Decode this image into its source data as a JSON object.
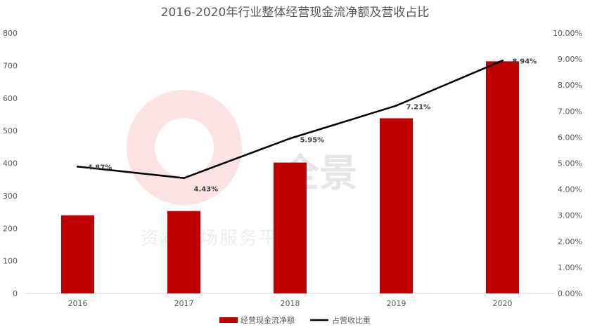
{
  "chart_data": {
    "type": "bar+line",
    "title": "2016-2020年行业整体经营现金流净额及营收占比",
    "categories": [
      "2016",
      "2017",
      "2018",
      "2019",
      "2020"
    ],
    "series": [
      {
        "name": "经营现金流净额",
        "type": "bar",
        "axis": "left",
        "color": "#c00000",
        "values": [
          240,
          253,
          402,
          538,
          713
        ]
      },
      {
        "name": "占营收比重",
        "type": "line",
        "axis": "right",
        "color": "#000000",
        "values": [
          4.87,
          4.43,
          5.95,
          7.21,
          8.94
        ],
        "labels": [
          "4.87%",
          "4.43%",
          "5.95%",
          "7.21%",
          "8.94%"
        ]
      }
    ],
    "y_left": {
      "min": 0,
      "max": 800,
      "step": 100,
      "ticks": [
        "0",
        "100",
        "200",
        "300",
        "400",
        "500",
        "600",
        "700",
        "800"
      ]
    },
    "y_right": {
      "min": 0,
      "max": 10,
      "step": 1,
      "ticks": [
        "0.00%",
        "1.00%",
        "2.00%",
        "3.00%",
        "4.00%",
        "5.00%",
        "6.00%",
        "7.00%",
        "8.00%",
        "9.00%",
        "10.00%"
      ]
    },
    "legend": {
      "position": "bottom"
    },
    "grid": false
  },
  "watermark": {
    "text": "全景",
    "subtext": "资本市场服务平台"
  }
}
